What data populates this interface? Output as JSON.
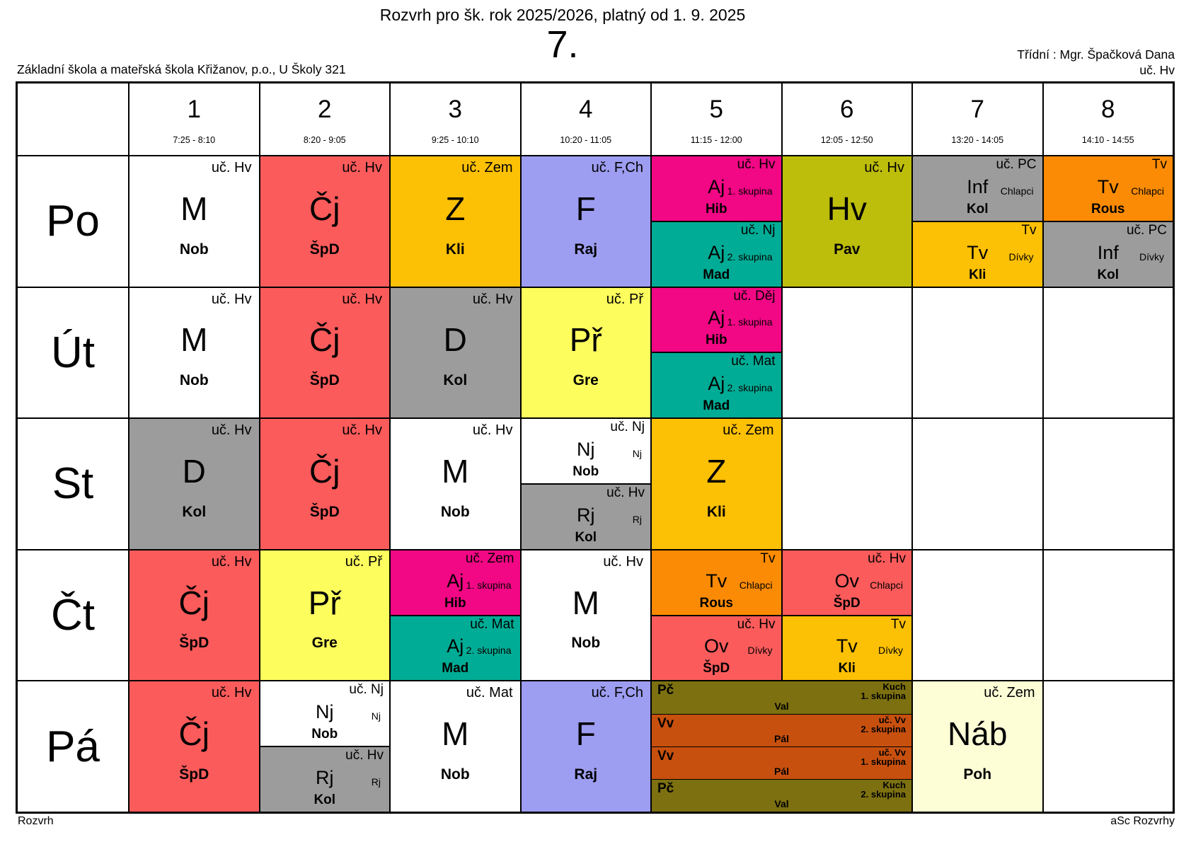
{
  "header": {
    "title": "Rozvrh pro šk. rok 2025/2026, platný od 1. 9. 2025",
    "class_name": "7.",
    "school": "Základní škola a mateřská škola Křižanov, p.o., U Školy 321",
    "class_teacher": "Třídní : Mgr. Špačková Dana",
    "home_room": "uč. Hv"
  },
  "footer": {
    "left": "Rozvrh",
    "right": "aSc Rozvrhy"
  },
  "days": {
    "po": "Po",
    "ut": "Út",
    "st": "St",
    "ct": "Čt",
    "pa": "Pá"
  },
  "periods": [
    {
      "num": "1",
      "time": "7:25 - 8:10"
    },
    {
      "num": "2",
      "time": "8:20 - 9:05"
    },
    {
      "num": "3",
      "time": "9:25 - 10:10"
    },
    {
      "num": "4",
      "time": "10:20 - 11:05"
    },
    {
      "num": "5",
      "time": "11:15 - 12:00"
    },
    {
      "num": "6",
      "time": "12:05 - 12:50"
    },
    {
      "num": "7",
      "time": "13:20 - 14:05"
    },
    {
      "num": "8",
      "time": "14:10 - 14:55"
    }
  ],
  "colors": {
    "red": "#fc5b5b",
    "amber": "#fcc005",
    "purple": "#9d9df1",
    "magenta": "#f20784",
    "teal": "#00ac95",
    "olive": "#bdbd0c",
    "gray": "#9c9c9c",
    "orange": "#fb8b04",
    "yellow": "#fdfd5e",
    "dark_olive": "#7c7011",
    "rust": "#c7500e",
    "cream": "#fdfdd6",
    "white": "#ffffff"
  },
  "lessons": {
    "po": {
      "p1": {
        "room": "uč. Hv",
        "subject": "M",
        "teacher": "Nob"
      },
      "p2": {
        "room": "uč. Hv",
        "subject": "Čj",
        "teacher": "ŠpD"
      },
      "p3": {
        "room": "uč. Zem",
        "subject": "Z",
        "teacher": "Kli"
      },
      "p4": {
        "room": "uč. F,Ch",
        "subject": "F",
        "teacher": "Raj"
      },
      "p5": {
        "top": {
          "room": "uč. Hv",
          "subject": "Aj",
          "group": "1. skupina",
          "teacher": "Hib"
        },
        "bottom": {
          "room": "uč. Nj",
          "subject": "Aj",
          "group": "2. skupina",
          "teacher": "Mad"
        }
      },
      "p6": {
        "room": "uč. Hv",
        "subject": "Hv",
        "teacher": "Pav"
      },
      "p7": {
        "top": {
          "room": "uč. PC",
          "subject": "Inf",
          "group": "Chlapci",
          "teacher": "Kol"
        },
        "bottom": {
          "room": "Tv",
          "subject": "Tv",
          "group": "Dívky",
          "teacher": "Kli"
        }
      },
      "p8": {
        "top": {
          "room": "Tv",
          "subject": "Tv",
          "group": "Chlapci",
          "teacher": "Rous"
        },
        "bottom": {
          "room": "uč. PC",
          "subject": "Inf",
          "group": "Dívky",
          "teacher": "Kol"
        }
      }
    },
    "ut": {
      "p1": {
        "room": "uč. Hv",
        "subject": "M",
        "teacher": "Nob"
      },
      "p2": {
        "room": "uč. Hv",
        "subject": "Čj",
        "teacher": "ŠpD"
      },
      "p3": {
        "room": "uč. Hv",
        "subject": "D",
        "teacher": "Kol"
      },
      "p4": {
        "room": "uč. Př",
        "subject": "Př",
        "teacher": "Gre"
      },
      "p5": {
        "top": {
          "room": "uč. Děj",
          "subject": "Aj",
          "group": "1. skupina",
          "teacher": "Hib"
        },
        "bottom": {
          "room": "uč. Mat",
          "subject": "Aj",
          "group": "2. skupina",
          "teacher": "Mad"
        }
      }
    },
    "st": {
      "p1": {
        "room": "uč. Hv",
        "subject": "D",
        "teacher": "Kol"
      },
      "p2": {
        "room": "uč. Hv",
        "subject": "Čj",
        "teacher": "ŠpD"
      },
      "p3": {
        "room": "uč. Hv",
        "subject": "M",
        "teacher": "Nob"
      },
      "p4": {
        "top": {
          "room": "uč. Nj",
          "subject": "Nj",
          "group": "Nj",
          "teacher": "Nob"
        },
        "bottom": {
          "room": "uč. Hv",
          "subject": "Rj",
          "group": "Rj",
          "teacher": "Kol"
        }
      },
      "p5": {
        "room": "uč. Zem",
        "subject": "Z",
        "teacher": "Kli"
      }
    },
    "ct": {
      "p1": {
        "room": "uč. Hv",
        "subject": "Čj",
        "teacher": "ŠpD"
      },
      "p2": {
        "room": "uč. Př",
        "subject": "Př",
        "teacher": "Gre"
      },
      "p3": {
        "top": {
          "room": "uč. Zem",
          "subject": "Aj",
          "group": "1. skupina",
          "teacher": "Hib"
        },
        "bottom": {
          "room": "uč. Mat",
          "subject": "Aj",
          "group": "2. skupina",
          "teacher": "Mad"
        }
      },
      "p4": {
        "room": "uč. Hv",
        "subject": "M",
        "teacher": "Nob"
      },
      "p5": {
        "top": {
          "room": "Tv",
          "subject": "Tv",
          "group": "Chlapci",
          "teacher": "Rous"
        },
        "bottom": {
          "room": "uč. Hv",
          "subject": "Ov",
          "group": "Dívky",
          "teacher": "ŠpD"
        }
      },
      "p6": {
        "top": {
          "room": "uč. Hv",
          "subject": "Ov",
          "group": "Chlapci",
          "teacher": "ŠpD"
        },
        "bottom": {
          "room": "Tv",
          "subject": "Tv",
          "group": "Dívky",
          "teacher": "Kli"
        }
      }
    },
    "pa": {
      "p1": {
        "room": "uč. Hv",
        "subject": "Čj",
        "teacher": "ŠpD"
      },
      "p2": {
        "top": {
          "room": "uč. Nj",
          "subject": "Nj",
          "group": "Nj",
          "teacher": "Nob"
        },
        "bottom": {
          "room": "uč. Hv",
          "subject": "Rj",
          "group": "Rj",
          "teacher": "Kol"
        }
      },
      "p3": {
        "room": "uč. Mat",
        "subject": "M",
        "teacher": "Nob"
      },
      "p4": {
        "room": "uč. F,Ch",
        "subject": "F",
        "teacher": "Raj"
      },
      "p56": {
        "strips": [
          {
            "subject": "Pč",
            "teacher": "Val",
            "room": "Kuch",
            "group": "1. skupina"
          },
          {
            "subject": "Vv",
            "teacher": "Pál",
            "room": "uč. Vv",
            "group": "2. skupina"
          },
          {
            "subject": "Vv",
            "teacher": "Pál",
            "room": "uč. Vv",
            "group": "1. skupina"
          },
          {
            "subject": "Pč",
            "teacher": "Val",
            "room": "Kuch",
            "group": "2. skupina"
          }
        ]
      },
      "p7": {
        "room": "uč. Zem",
        "subject": "Náb",
        "teacher": "Poh"
      }
    }
  }
}
